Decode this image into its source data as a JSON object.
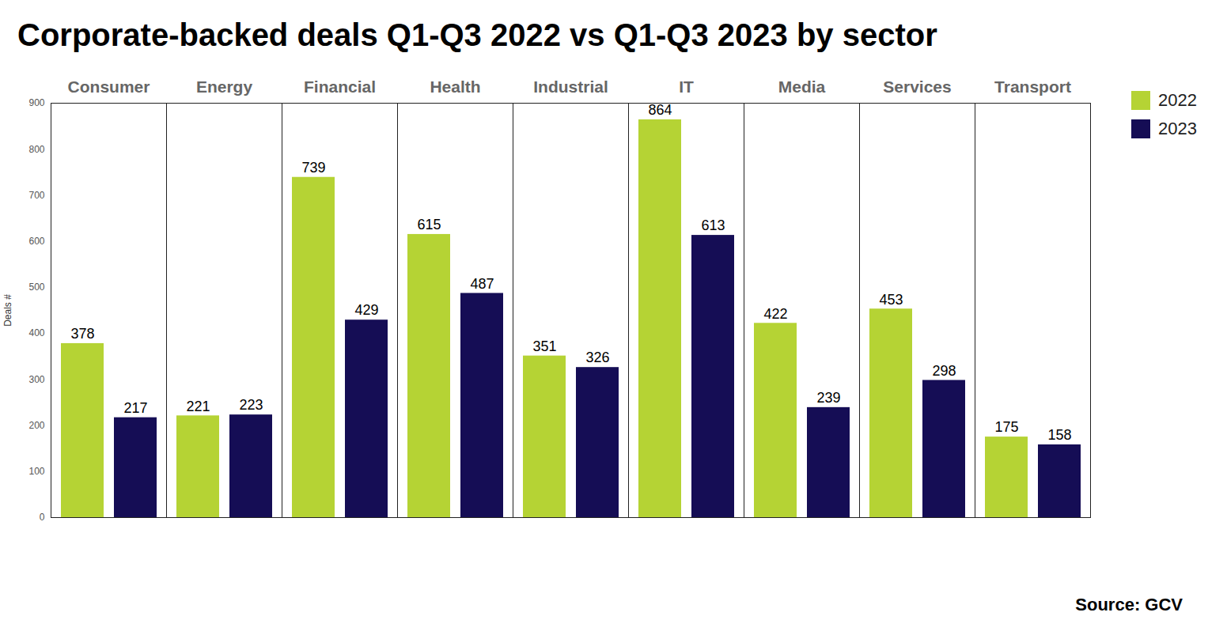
{
  "chart_data": {
    "type": "bar",
    "title": "Corporate-backed deals Q1-Q3 2022 vs Q1-Q3 2023 by sector",
    "categories": [
      "Consumer",
      "Energy",
      "Financial",
      "Health",
      "Industrial",
      "IT",
      "Media",
      "Services",
      "Transport"
    ],
    "series": [
      {
        "name": "2022",
        "color": "#b5d334",
        "values": [
          378,
          221,
          739,
          615,
          351,
          864,
          422,
          453,
          175
        ]
      },
      {
        "name": "2023",
        "color": "#150d55",
        "values": [
          217,
          223,
          429,
          487,
          326,
          613,
          239,
          298,
          158
        ]
      }
    ],
    "y_label": "Deals #",
    "ylim": [
      0,
      900
    ],
    "yticks": [
      0,
      100,
      200,
      300,
      400,
      500,
      600,
      700,
      800,
      900
    ],
    "grid": false,
    "data_labels": true,
    "legend": "right",
    "source": "Source: GCV"
  }
}
